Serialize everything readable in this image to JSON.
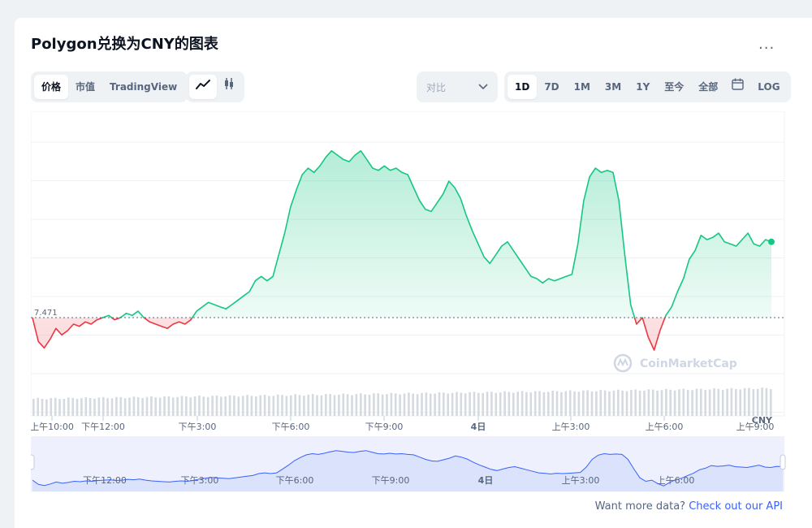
{
  "title": "Polygon兑换为CNY的图表",
  "more_label": "...",
  "tabs": [
    {
      "label": "价格",
      "active": true
    },
    {
      "label": "市值",
      "active": false
    },
    {
      "label": "TradingView",
      "active": false
    }
  ],
  "chart_types": [
    {
      "icon": "line-chart-icon",
      "active": true
    },
    {
      "icon": "candlestick-icon",
      "active": false
    }
  ],
  "compare": {
    "label": "对比",
    "icon": "chevron-down-icon"
  },
  "ranges": [
    {
      "label": "1D",
      "active": true
    },
    {
      "label": "7D",
      "active": false
    },
    {
      "label": "1M",
      "active": false
    },
    {
      "label": "3M",
      "active": false
    },
    {
      "label": "1Y",
      "active": false
    },
    {
      "label": "至今",
      "active": false
    },
    {
      "label": "全部",
      "active": false
    }
  ],
  "calendar_icon": "calendar-icon",
  "log_label": "LOG",
  "watermark": "CoinMarketCap",
  "footer": {
    "text": "Want more data? ",
    "link": "Check out our API"
  },
  "colors": {
    "up": "#16c784",
    "down": "#ea3943",
    "navigator": "#3861fb",
    "link": "#3861fb"
  },
  "chart_data": {
    "type": "line",
    "currency": "CNY",
    "reference_label": "7.471",
    "reference_value": 7.471,
    "x_ticks": [
      "上午10:00",
      "下午12:00",
      "下午3:00",
      "下午6:00",
      "下午9:00",
      "4日",
      "上午3:00",
      "上午6:00",
      "上午9:00"
    ],
    "navigator_ticks": [
      "下午12:00",
      "下午3:00",
      "下午6:00",
      "下午9:00",
      "4日",
      "上午3:00",
      "上午6:00"
    ],
    "price": [
      7.471,
      7.46,
      7.457,
      7.461,
      7.466,
      7.463,
      7.465,
      7.468,
      7.467,
      7.469,
      7.468,
      7.47,
      7.471,
      7.472,
      7.47,
      7.471,
      7.473,
      7.472,
      7.474,
      7.471,
      7.469,
      7.468,
      7.467,
      7.466,
      7.468,
      7.469,
      7.468,
      7.47,
      7.474,
      7.476,
      7.478,
      7.477,
      7.476,
      7.475,
      7.477,
      7.479,
      7.481,
      7.483,
      7.488,
      7.49,
      7.488,
      7.49,
      7.5,
      7.51,
      7.522,
      7.53,
      7.537,
      7.54,
      7.538,
      7.541,
      7.545,
      7.548,
      7.546,
      7.544,
      7.543,
      7.546,
      7.548,
      7.544,
      7.54,
      7.539,
      7.541,
      7.539,
      7.54,
      7.538,
      7.537,
      7.531,
      7.525,
      7.521,
      7.52,
      7.524,
      7.528,
      7.534,
      7.531,
      7.526,
      7.518,
      7.511,
      7.505,
      7.499,
      7.496,
      7.5,
      7.504,
      7.506,
      7.502,
      7.498,
      7.494,
      7.49,
      7.489,
      7.487,
      7.489,
      7.488,
      7.489,
      7.49,
      7.491,
      7.505,
      7.525,
      7.536,
      7.54,
      7.538,
      7.539,
      7.538,
      7.525,
      7.5,
      7.477,
      7.468,
      7.471,
      7.462,
      7.456,
      7.465,
      7.472,
      7.476,
      7.483,
      7.489,
      7.498,
      7.502,
      7.509,
      7.507,
      7.508,
      7.51,
      7.506,
      7.505,
      7.504,
      7.507,
      7.51,
      7.505,
      7.504,
      7.507,
      7.506
    ]
  }
}
